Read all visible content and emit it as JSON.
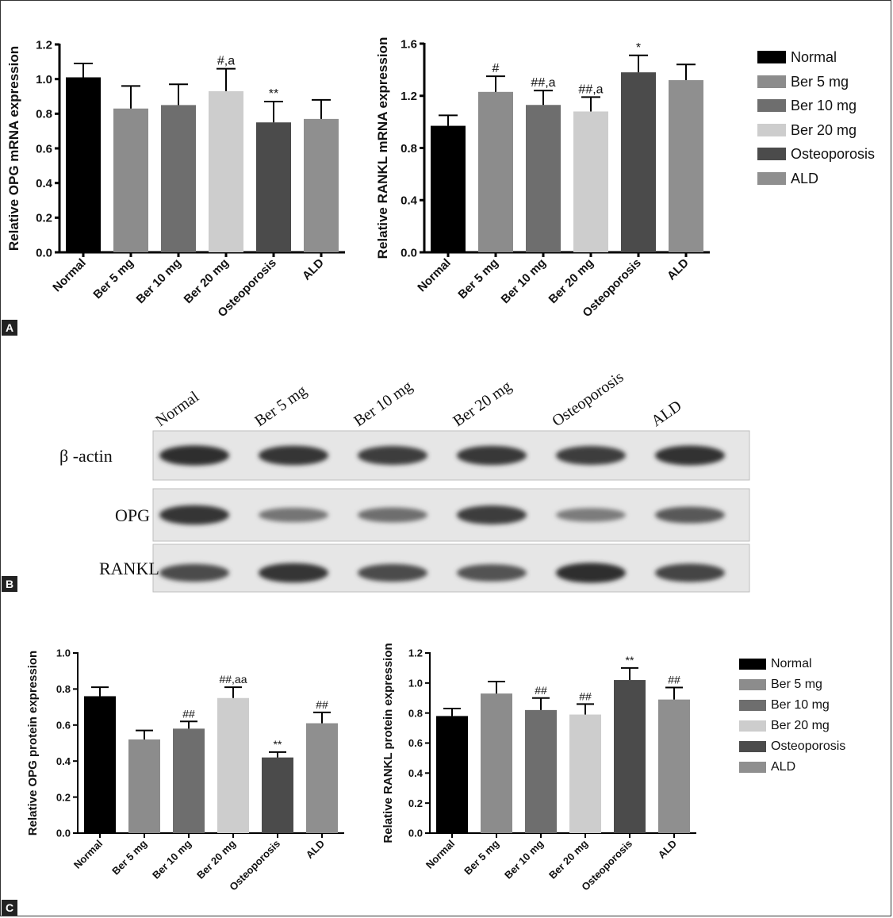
{
  "panels": [
    "A",
    "B",
    "C"
  ],
  "legend": {
    "entries": [
      {
        "label": "Normal",
        "color": "#000000"
      },
      {
        "label": "Ber 5 mg",
        "color": "#8c8c8c"
      },
      {
        "label": "Ber 10 mg",
        "color": "#6e6e6e"
      },
      {
        "label": "Ber 20 mg",
        "color": "#cdcdcd"
      },
      {
        "label": "Osteoporosis",
        "color": "#4b4b4b"
      },
      {
        "label": "ALD",
        "color": "#8f8f8f"
      }
    ]
  },
  "blot": {
    "lanes": [
      "Normal",
      "Ber 5 mg",
      "Ber 10 mg",
      "Ber 20 mg",
      "Osteoporosis",
      "ALD"
    ],
    "rows": [
      {
        "label": "β -actin",
        "intensities": [
          0.95,
          0.9,
          0.85,
          0.88,
          0.85,
          0.92
        ]
      },
      {
        "label": "OPG",
        "intensities": [
          0.9,
          0.45,
          0.5,
          0.85,
          0.4,
          0.65
        ]
      },
      {
        "label": "RANKL",
        "intensities": [
          0.75,
          0.9,
          0.75,
          0.7,
          0.95,
          0.8
        ]
      }
    ]
  },
  "chart_data": [
    {
      "type": "bar",
      "panel": "A",
      "categories": [
        "Normal",
        "Ber 5 mg",
        "Ber 10 mg",
        "Ber 20 mg",
        "Osteoporosis",
        "ALD"
      ],
      "values": [
        1.01,
        0.83,
        0.85,
        0.93,
        0.75,
        0.77
      ],
      "errors": [
        0.08,
        0.13,
        0.12,
        0.13,
        0.12,
        0.11
      ],
      "annotations": [
        "",
        "",
        "",
        "#,a",
        "**",
        ""
      ],
      "colors": [
        "#000000",
        "#8c8c8c",
        "#6e6e6e",
        "#cdcdcd",
        "#4b4b4b",
        "#8f8f8f"
      ],
      "title": "",
      "xlabel": "",
      "ylabel": "Relative OPG mRNA expression",
      "ylim": [
        0,
        1.2
      ],
      "yticks": [
        "0.0",
        "0.2",
        "0.4",
        "0.6",
        "0.8",
        "1.0",
        "1.2"
      ],
      "grid": false
    },
    {
      "type": "bar",
      "panel": "A",
      "categories": [
        "Normal",
        "Ber 5 mg",
        "Ber 10 mg",
        "Ber 20 mg",
        "Osteoporosis",
        "ALD"
      ],
      "values": [
        0.97,
        1.23,
        1.13,
        1.08,
        1.38,
        1.32
      ],
      "errors": [
        0.08,
        0.12,
        0.11,
        0.11,
        0.13,
        0.12
      ],
      "annotations": [
        "",
        "#",
        "##,a",
        "##,a",
        "*",
        ""
      ],
      "colors": [
        "#000000",
        "#8c8c8c",
        "#6e6e6e",
        "#cdcdcd",
        "#4b4b4b",
        "#8f8f8f"
      ],
      "title": "",
      "xlabel": "",
      "ylabel": "Relative RANKL mRNA expression",
      "ylim": [
        0,
        1.6
      ],
      "yticks": [
        "0.0",
        "0.4",
        "0.8",
        "1.2",
        "1.6"
      ],
      "grid": false
    },
    {
      "type": "bar",
      "panel": "C",
      "categories": [
        "Normal",
        "Ber 5 mg",
        "Ber 10 mg",
        "Ber 20 mg",
        "Osteoporosis",
        "ALD"
      ],
      "values": [
        0.76,
        0.52,
        0.58,
        0.75,
        0.42,
        0.61
      ],
      "errors": [
        0.05,
        0.05,
        0.04,
        0.06,
        0.03,
        0.06
      ],
      "annotations": [
        "",
        "",
        "##",
        "##,aa",
        "**",
        "##"
      ],
      "colors": [
        "#000000",
        "#8c8c8c",
        "#6e6e6e",
        "#cdcdcd",
        "#4b4b4b",
        "#8f8f8f"
      ],
      "title": "",
      "xlabel": "",
      "ylabel": "Relative OPG protein expression",
      "ylim": [
        0,
        1.0
      ],
      "yticks": [
        "0.0",
        "0.2",
        "0.4",
        "0.6",
        "0.8",
        "1.0"
      ],
      "grid": false
    },
    {
      "type": "bar",
      "panel": "C",
      "categories": [
        "Normal",
        "Ber 5 mg",
        "Ber 10 mg",
        "Ber 20 mg",
        "Osteoporosis",
        "ALD"
      ],
      "values": [
        0.78,
        0.93,
        0.82,
        0.79,
        1.02,
        0.89
      ],
      "errors": [
        0.05,
        0.08,
        0.08,
        0.07,
        0.08,
        0.08
      ],
      "annotations": [
        "",
        "",
        "##",
        "##",
        "**",
        "##"
      ],
      "colors": [
        "#000000",
        "#8c8c8c",
        "#6e6e6e",
        "#cdcdcd",
        "#4b4b4b",
        "#8f8f8f"
      ],
      "title": "",
      "xlabel": "",
      "ylabel": "Relative RANKL protein expression",
      "ylim": [
        0,
        1.2
      ],
      "yticks": [
        "0.0",
        "0.2",
        "0.4",
        "0.6",
        "0.8",
        "1.0",
        "1.2"
      ],
      "grid": false
    }
  ]
}
